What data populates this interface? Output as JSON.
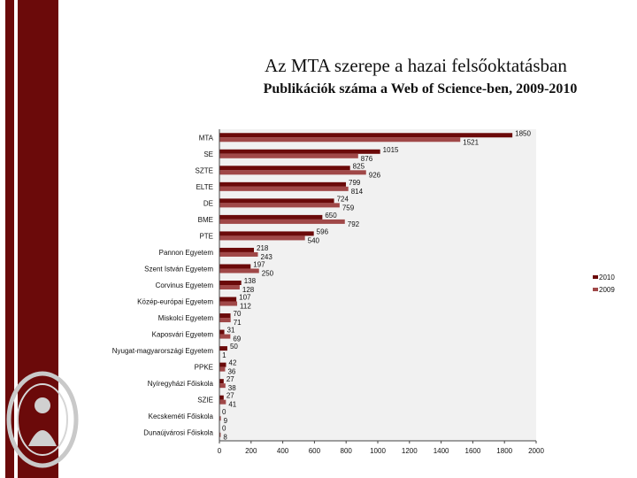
{
  "header": {
    "title": "Az MTA szerepe a hazai felsőoktatásban",
    "subtitle": "Publikációk száma a Web of Science-ben, 2009-2010"
  },
  "colors": {
    "stripe": "#6b0a0a",
    "series_2010": "#6b0a0a",
    "series_2009": "#a04848",
    "plot_bg": "#f1f1f1",
    "seal": "#c9c9c9"
  },
  "chart_data": {
    "type": "bar",
    "orientation": "horizontal",
    "title": "Publikációk száma a Web of Science-ben, 2009-2010",
    "xlim": [
      0,
      2000
    ],
    "xticks": [
      "0",
      "200",
      "400",
      "600",
      "800",
      "1000",
      "1200",
      "1400",
      "1600",
      "1800",
      "2000"
    ],
    "legend_position": "right",
    "grid": false,
    "categories": [
      "MTA",
      "SE",
      "SZTE",
      "ELTE",
      "DE",
      "BME",
      "PTE",
      "Pannon Egyetem",
      "Szent István Egyetem",
      "Corvinus Egyetem",
      "Közép-európai Egyetem",
      "Miskolci Egyetem",
      "Kaposvári Egyetem",
      "Nyugat-magyarországi Egyetem",
      "PPKE",
      "Nyíregyházi Főiskola",
      "SZIE",
      "Kecskeméti Főiskola",
      "Dunaújvárosi Főiskola"
    ],
    "series": [
      {
        "name": "2010",
        "values": [
          1850,
          1015,
          825,
          799,
          724,
          650,
          596,
          218,
          197,
          138,
          107,
          70,
          31,
          50,
          42,
          27,
          27,
          0,
          0
        ],
        "labels": [
          "1850",
          "1015",
          "825",
          "799",
          "724",
          "650",
          "596",
          "218",
          "197",
          "138",
          "107",
          "70",
          "31",
          "50",
          "42",
          "27",
          "27",
          "0",
          "0"
        ]
      },
      {
        "name": "2009",
        "values": [
          1521,
          876,
          926,
          814,
          759,
          792,
          540,
          243,
          250,
          128,
          112,
          71,
          69,
          1,
          36,
          38,
          41,
          9,
          8
        ],
        "labels": [
          "1521",
          "876",
          "926",
          "814",
          "759",
          "792",
          "540",
          "243",
          "250",
          "128",
          "112",
          "71",
          "69",
          "1",
          "36",
          "38",
          "41",
          "9",
          "8"
        ]
      }
    ]
  }
}
